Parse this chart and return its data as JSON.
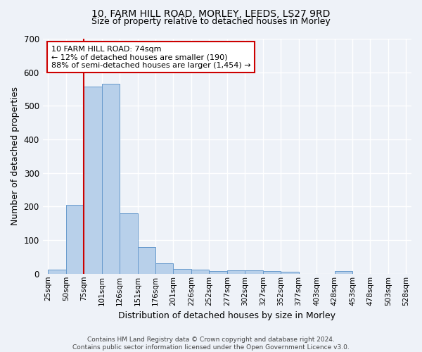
{
  "title": "10, FARM HILL ROAD, MORLEY, LEEDS, LS27 9RD",
  "subtitle": "Size of property relative to detached houses in Morley",
  "xlabel": "Distribution of detached houses by size in Morley",
  "ylabel": "Number of detached properties",
  "bar_values": [
    13,
    204,
    557,
    565,
    180,
    79,
    30,
    14,
    13,
    7,
    10,
    10,
    8,
    5,
    0,
    0,
    7,
    0,
    0,
    0
  ],
  "bar_labels": [
    "25sqm",
    "50sqm",
    "75sqm",
    "101sqm",
    "126sqm",
    "151sqm",
    "176sqm",
    "201sqm",
    "226sqm",
    "252sqm",
    "277sqm",
    "302sqm",
    "327sqm",
    "352sqm",
    "377sqm",
    "403sqm",
    "428sqm",
    "453sqm",
    "478sqm",
    "503sqm",
    "528sqm"
  ],
  "bar_color": "#b8d0ea",
  "bar_edge_color": "#6699cc",
  "ylim": [
    0,
    700
  ],
  "yticks": [
    0,
    100,
    200,
    300,
    400,
    500,
    600,
    700
  ],
  "vline_x": 2,
  "vline_color": "#cc0000",
  "annotation_text": "10 FARM HILL ROAD: 74sqm\n← 12% of detached houses are smaller (190)\n88% of semi-detached houses are larger (1,454) →",
  "annotation_box_facecolor": "#ffffff",
  "annotation_box_edgecolor": "#cc0000",
  "footer_text": "Contains HM Land Registry data © Crown copyright and database right 2024.\nContains public sector information licensed under the Open Government Licence v3.0.",
  "bg_color": "#eef2f8",
  "grid_color": "#ffffff",
  "title_fontsize": 10,
  "subtitle_fontsize": 9,
  "ylabel_text": "Number of detached properties"
}
